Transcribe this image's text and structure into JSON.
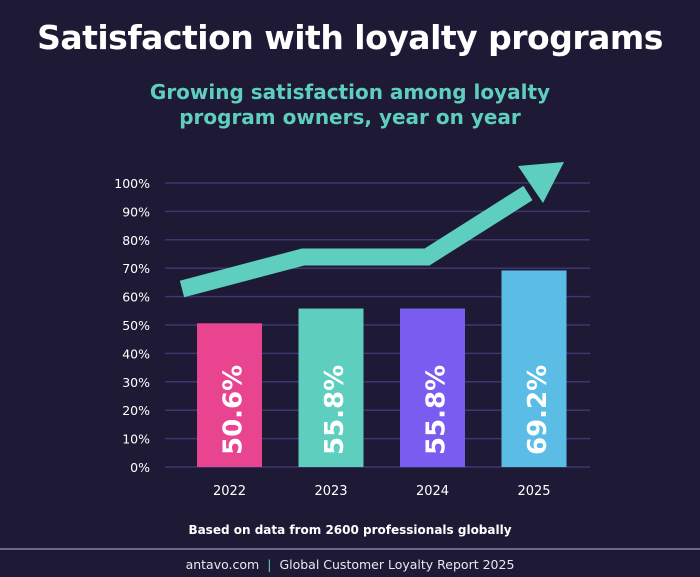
{
  "chart_data": {
    "type": "bar",
    "title": "Satisfaction with loyalty programs",
    "subtitle": "Growing satisfaction among loyalty program owners, year on year",
    "categories": [
      "2022",
      "2023",
      "2024",
      "2025"
    ],
    "values": [
      50.6,
      55.8,
      55.8,
      69.2
    ],
    "data_labels": [
      "50.6%",
      "55.8%",
      "55.8%",
      "69.2%"
    ],
    "bar_colors": [
      "#e8448f",
      "#5ecfbf",
      "#7b5cf0",
      "#5bbde6"
    ],
    "ylim": [
      0,
      100
    ],
    "yticks": [
      "0%",
      "10%",
      "20%",
      "30%",
      "40%",
      "50%",
      "60%",
      "70%",
      "80%",
      "90%",
      "100%"
    ],
    "grid": true,
    "trend_arrow_color": "#5ecfbf"
  },
  "note": "Based on data from 2600 professionals globally",
  "footer": {
    "site": "antavo.com",
    "separator": "|",
    "report": "Global Customer Loyalty Report 2025"
  }
}
